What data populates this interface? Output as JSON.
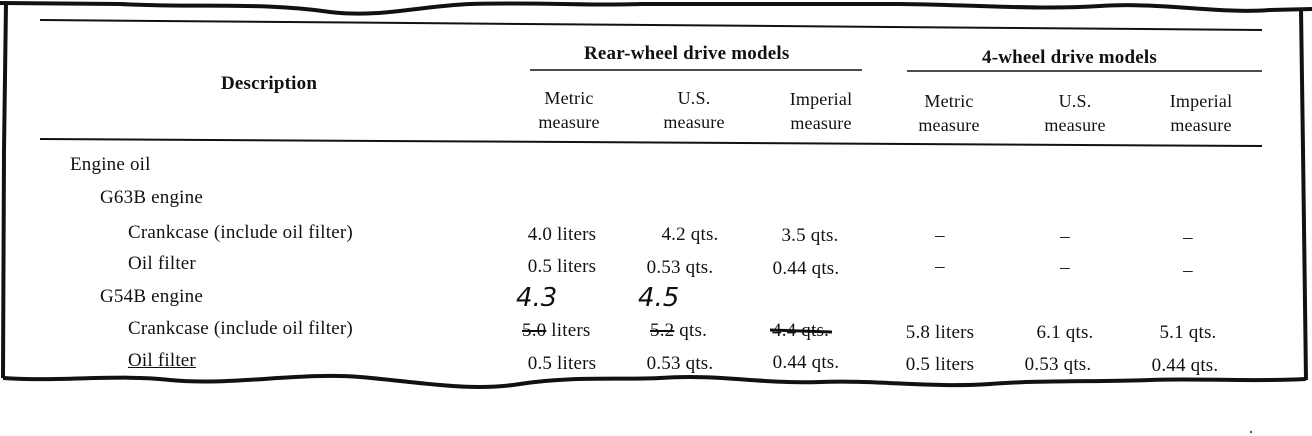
{
  "header": {
    "description": "Description",
    "group_rear": "Rear-wheel drive models",
    "group_4wd": "4-wheel drive models",
    "col_metric_line1": "Metric",
    "col_metric_line2": "measure",
    "col_us_line1": "U.S.",
    "col_us_line2": "measure",
    "col_imperial_line1": "Imperial",
    "col_imperial_line2": "measure"
  },
  "rows": {
    "engine_oil": "Engine oil",
    "g63b": "G63B engine",
    "g63b_crankcase": {
      "label": "Crankcase (include oil filter)",
      "rear_metric": "4.0 liters",
      "rear_us": "4.2 qts.",
      "rear_imp": "3.5 qts.",
      "fwd_metric": "–",
      "fwd_us": "–",
      "fwd_imp": "–"
    },
    "g63b_filter": {
      "label": "Oil filter",
      "rear_metric": "0.5 liters",
      "rear_us": "0.53 qts.",
      "rear_imp": "0.44 qts.",
      "fwd_metric": "–",
      "fwd_us": "–",
      "fwd_imp": "–"
    },
    "g54b": "G54B engine",
    "g54b_crankcase": {
      "label": "Crankcase (include oil filter)",
      "rear_metric_struck": "5.0",
      "rear_metric_unit": " liters",
      "rear_us_struck": "5.2",
      "rear_us_unit": " qts.",
      "rear_imp_struck": "4.4 qt",
      "rear_imp_unit": "s.",
      "handwritten_metric": "4.3",
      "handwritten_us": "4.5",
      "fwd_metric": "5.8 liters",
      "fwd_us": "6.1 qts.",
      "fwd_imp": "5.1 qts."
    },
    "g54b_filter": {
      "label": "Oil filter",
      "rear_metric": "0.5 liters",
      "rear_us": "0.53 qts.",
      "rear_imp": "0.44 qts.",
      "fwd_metric": "0.5 liters",
      "fwd_us": "0.53 qts.",
      "fwd_imp": "0.44 qts."
    }
  }
}
